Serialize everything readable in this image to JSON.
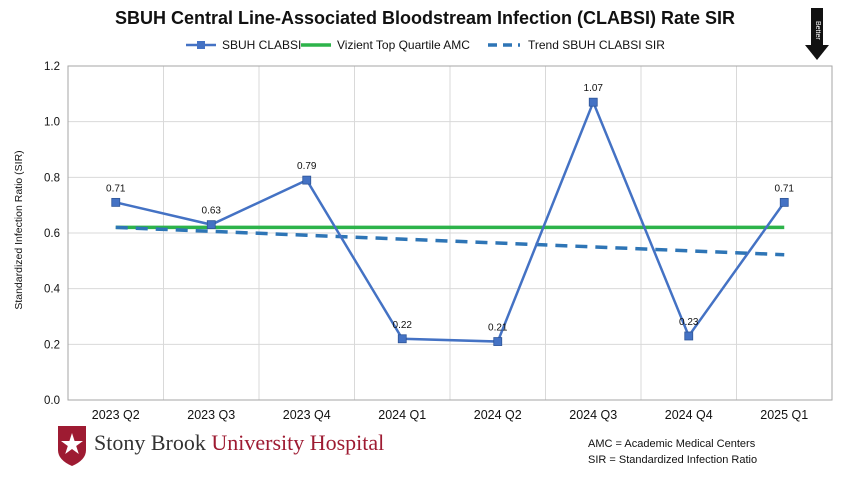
{
  "chart_data": {
    "type": "line",
    "title": "SBUH Central Line-Associated Bloodstream Infection (CLABSI) Rate SIR",
    "xlabel": "",
    "ylabel": "Standardized Infection Ratio (SIR)",
    "categories": [
      "2023 Q2",
      "2023 Q3",
      "2023 Q4",
      "2024 Q1",
      "2024 Q2",
      "2024 Q3",
      "2024 Q4",
      "2025 Q1"
    ],
    "ylim": [
      0,
      1.2
    ],
    "yticks": [
      "0.0",
      "0.2",
      "0.4",
      "0.6",
      "0.8",
      "1.0",
      "1.2"
    ],
    "grid": true,
    "legend_position": "top",
    "series": [
      {
        "name": "SBUH CLABSI",
        "values": [
          0.71,
          0.63,
          0.79,
          0.22,
          0.21,
          1.07,
          0.23,
          0.71
        ],
        "labels": [
          "0.71",
          "0.63",
          "0.79",
          "0.22",
          "0.21",
          "1.07",
          "0.23",
          "0.71"
        ],
        "color": "#4472c4",
        "style": "line-square-markers"
      },
      {
        "name": "Vizient Top Quartile AMC",
        "values": [
          0.62,
          0.62,
          0.62,
          0.62,
          0.62,
          0.62,
          0.62,
          0.62
        ],
        "color": "#2db34a",
        "style": "solid"
      },
      {
        "name": "Trend SBUH CLABSI SIR",
        "values": [
          0.62,
          0.606,
          0.592,
          0.578,
          0.564,
          0.55,
          0.536,
          0.522
        ],
        "color": "#2e75b6",
        "style": "dashed"
      }
    ],
    "direction_indicator": "Better"
  },
  "footer": {
    "logo_text_part1": "Stony Brook ",
    "logo_text_part2": "University Hospital",
    "note_amc": "AMC = Academic Medical Centers",
    "note_sir": "SIR = Standardized Infection Ratio"
  },
  "colors": {
    "brand_red": "#9e1b32",
    "grid": "#d9d9d9",
    "axis": "#a6a6a6"
  }
}
